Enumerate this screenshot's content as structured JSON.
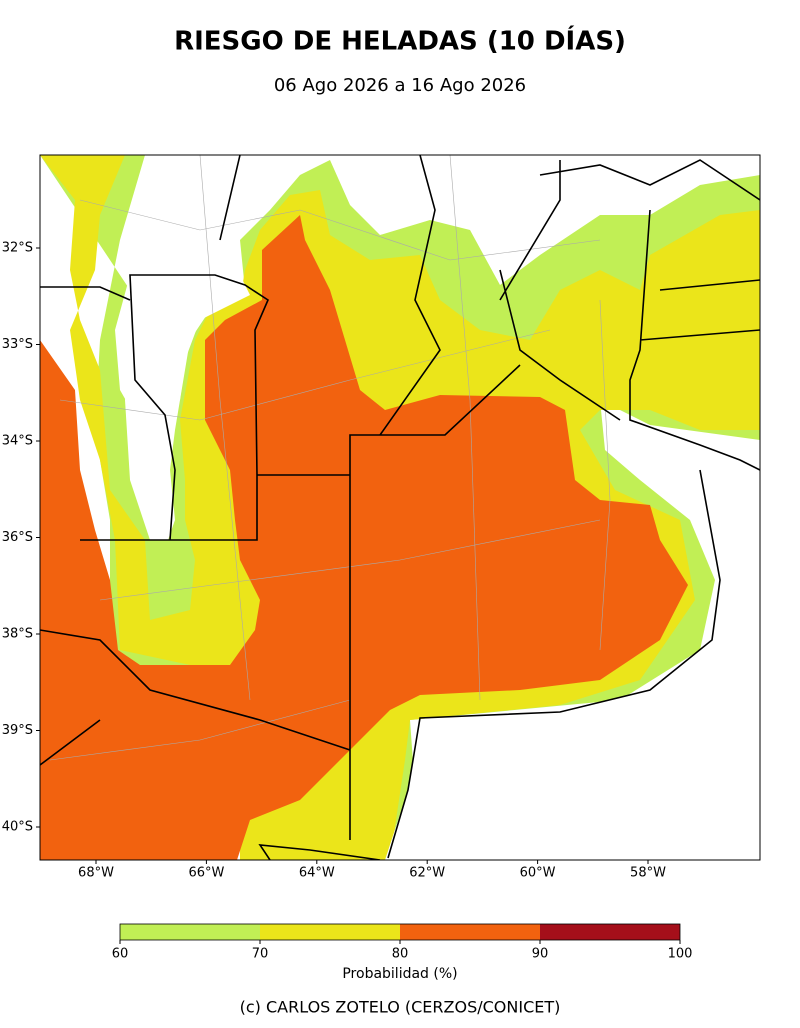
{
  "title": "RIESGO DE HELADAS (10 DÍAS)",
  "subtitle": "06 Ago 2026 a 16 Ago 2026",
  "lat_ticks": [
    "32°S",
    "33°S",
    "34°S",
    "36°S",
    "38°S",
    "39°S",
    "40°S"
  ],
  "lon_ticks": [
    "68°W",
    "66°W",
    "64°W",
    "62°W",
    "60°W",
    "58°W"
  ],
  "colorbar": {
    "label": "Probabilidad (%)",
    "bounds": [
      60,
      70,
      80,
      90,
      100
    ],
    "colors": [
      "#c1ef55",
      "#ebe51a",
      "#f2620f",
      "#a50f1a"
    ]
  },
  "credit": "(c) CARLOS ZOTELO (CERZOS/CONICET)"
}
